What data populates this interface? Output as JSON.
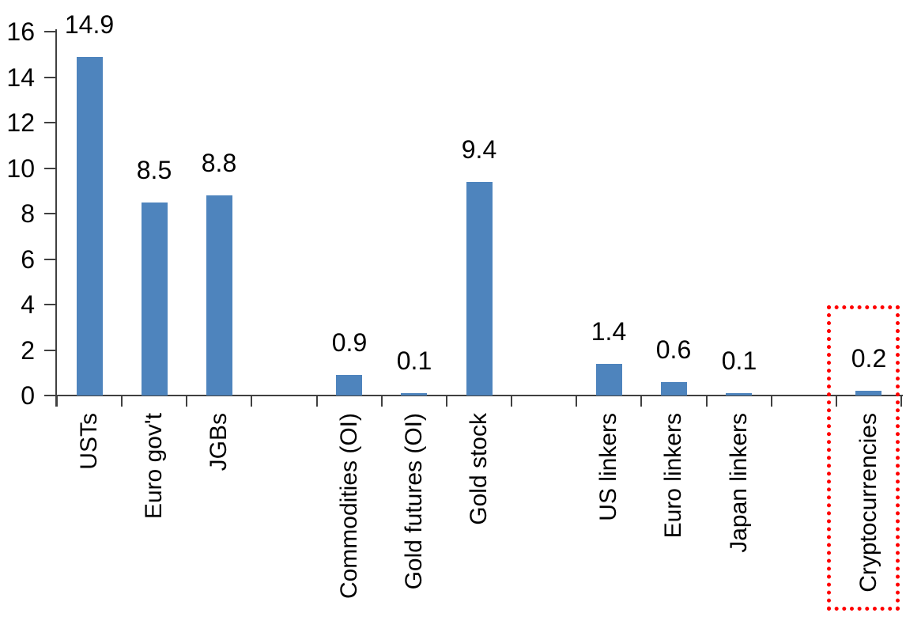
{
  "chart_data": {
    "type": "bar",
    "title": "",
    "xlabel": "",
    "ylabel": "",
    "categories": [
      "USTs",
      "Euro gov't",
      "JGBs",
      "Commodities (OI)",
      "Gold futures (OI)",
      "Gold stock",
      "US linkers",
      "Euro linkers",
      "Japan linkers",
      "Cryptocurrencies"
    ],
    "values": [
      14.9,
      8.5,
      8.8,
      0.9,
      0.1,
      9.4,
      1.4,
      0.6,
      0.1,
      0.2
    ],
    "data_labels": [
      "14.9",
      "8.5",
      "8.8",
      "0.9",
      "0.1",
      "9.4",
      "1.4",
      "0.6",
      "0.1",
      "0.2"
    ],
    "groups": [
      [
        "USTs",
        "Euro gov't",
        "JGBs"
      ],
      [
        "Commodities (OI)",
        "Gold futures (OI)",
        "Gold stock"
      ],
      [
        "US linkers",
        "Euro linkers",
        "Japan linkers"
      ],
      [
        "Cryptocurrencies"
      ]
    ],
    "y_ticks": [
      "0",
      "2",
      "4",
      "6",
      "8",
      "10",
      "12",
      "14",
      "16"
    ],
    "ylim": [
      0,
      16
    ],
    "grid": false,
    "legend": false,
    "label_rotation_deg": 90,
    "bar_color": "#4E84BD",
    "axis_color": "#404040",
    "text_color": "#000000",
    "highlight": {
      "category": "Cryptocurrencies",
      "box_color": "#FF0000",
      "box_style": "dotted"
    }
  }
}
